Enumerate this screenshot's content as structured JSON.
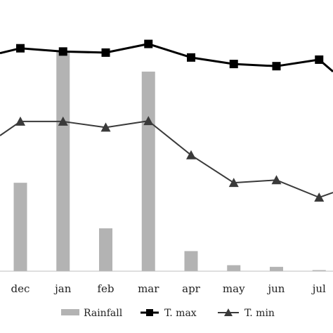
{
  "chart_data": {
    "type": "bar",
    "categories": [
      "dec",
      "jan",
      "feb",
      "mar",
      "apr",
      "may",
      "jun",
      "jul"
    ],
    "ylim": [
      0,
      50
    ],
    "grid": false,
    "legend_position": "bottom",
    "series": [
      {
        "name": "Rainfall",
        "kind": "bar",
        "color": "#b3b3b3",
        "values": [
          16.3,
          40.5,
          7.9,
          36.8,
          3.7,
          1.1,
          0.8,
          0.2
        ]
      },
      {
        "name": "T. max",
        "kind": "line",
        "marker": "square",
        "color": "#000000",
        "values": [
          41.1,
          40.5,
          40.3,
          41.9,
          39.4,
          38.2,
          37.8,
          39.0
        ],
        "edge_values": {
          "left": 40.2,
          "right": 36.8
        }
      },
      {
        "name": "T. min",
        "kind": "line",
        "marker": "triangle",
        "color": "#3a3a3a",
        "values": [
          27.6,
          27.6,
          26.5,
          27.7,
          21.4,
          16.3,
          16.8,
          13.6
        ],
        "edge_values": {
          "left": 25.0,
          "right": 14.5
        }
      }
    ]
  },
  "legend": {
    "rainfall_label": "Rainfall",
    "tmax_label": "T. max",
    "tmin_label": "T. min"
  }
}
